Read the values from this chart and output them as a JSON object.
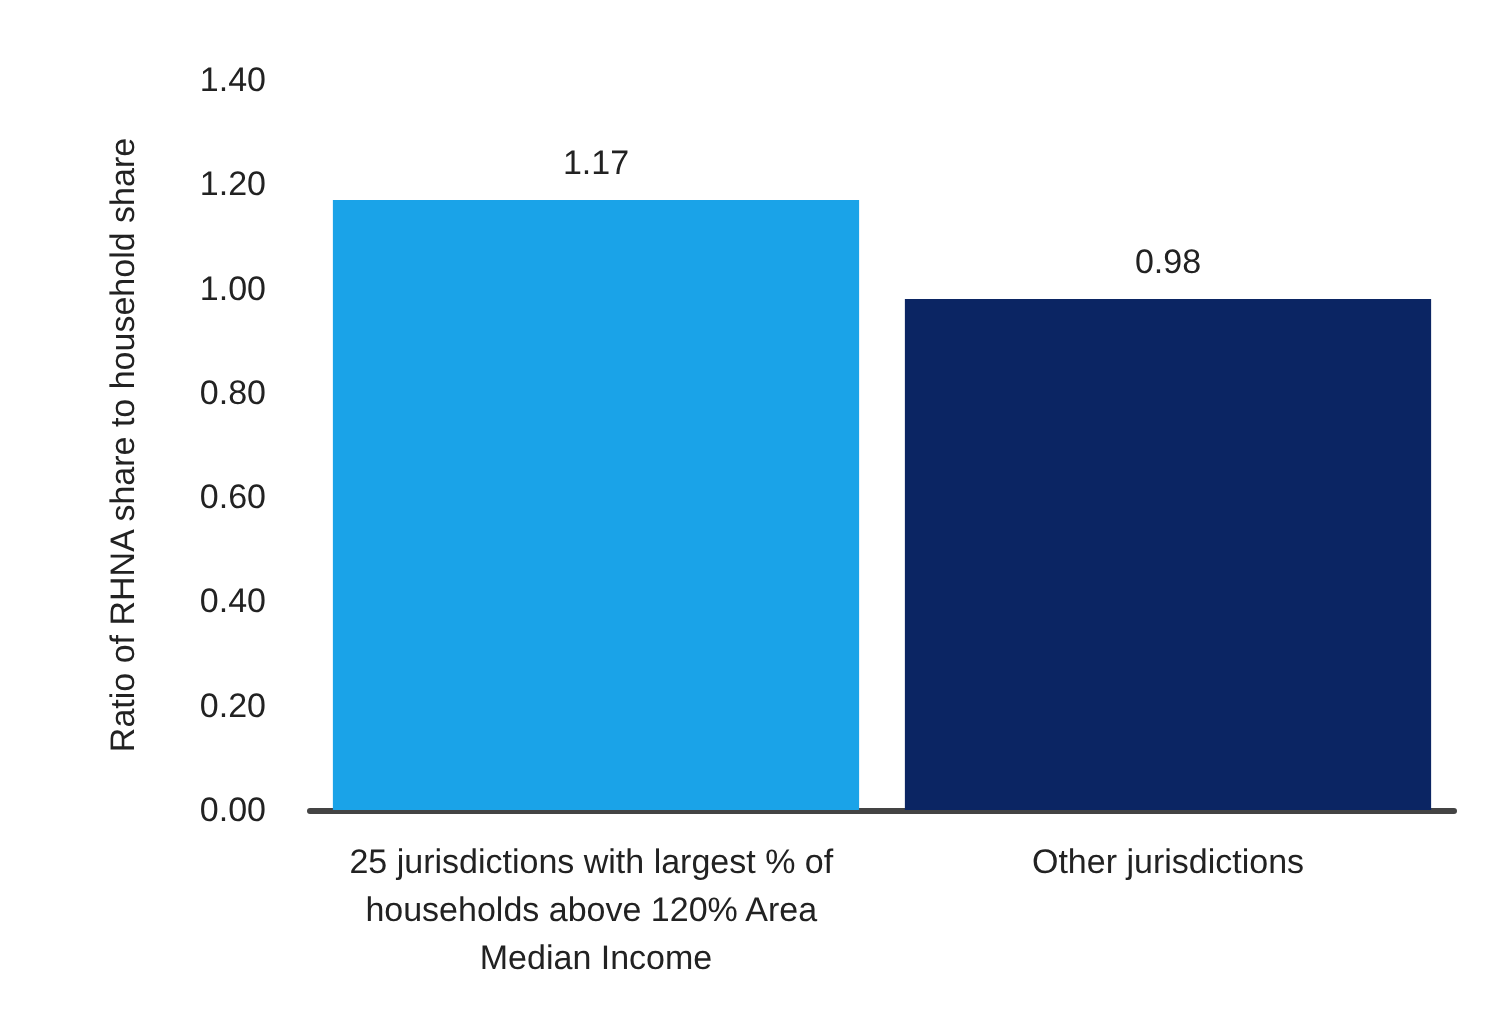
{
  "chart_data": {
    "type": "bar",
    "ylabel": "Ratio of RHNA share to household share",
    "categories": [
      "25 jurisdictions with largest % of households above 120% Area Median Income",
      "Other jurisdictions"
    ],
    "values": [
      1.17,
      0.98
    ],
    "colors": [
      "#1aa3e8",
      "#0b2563"
    ],
    "ylim": [
      0,
      1.4
    ],
    "yticks": [
      {
        "value": 0,
        "label": "0.00"
      },
      {
        "value": 0.2,
        "label": "0.20"
      },
      {
        "value": 0.4,
        "label": "0.40"
      },
      {
        "value": 0.6,
        "label": "0.60"
      },
      {
        "value": 0.8,
        "label": "0.80"
      },
      {
        "value": 1,
        "label": "1.00"
      },
      {
        "value": 1.2,
        "label": "1.20"
      },
      {
        "value": 1.4,
        "label": "1.40"
      }
    ],
    "data_labels": true
  }
}
